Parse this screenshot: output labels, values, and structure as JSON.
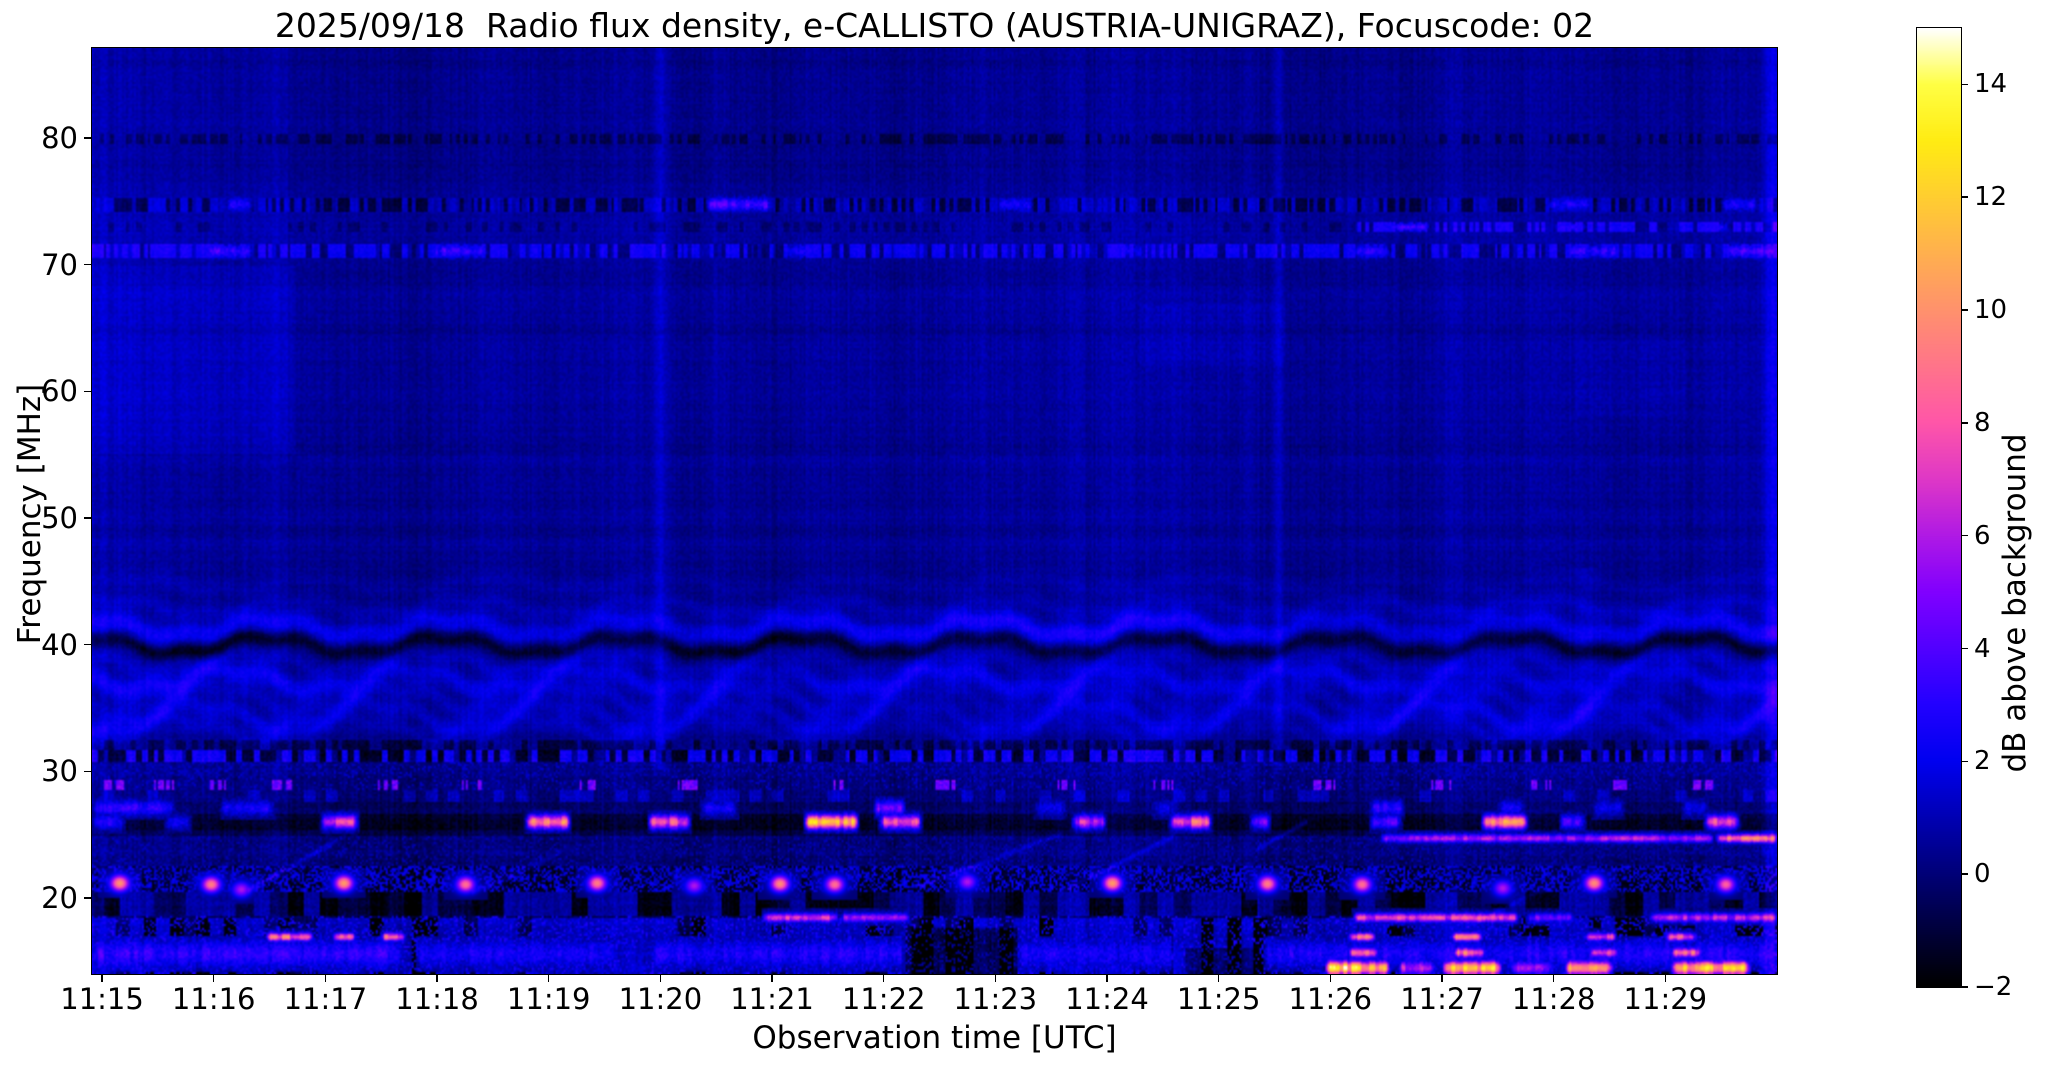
{
  "figure": {
    "background": "#ffffff",
    "text_color": "#000000"
  },
  "chart_data": {
    "type": "heatmap",
    "title": "2025/09/18  Radio flux density, e-CALLISTO (AUSTRIA-UNIGRAZ), Focuscode: 02",
    "date": "2025/09/18",
    "instrument": "e-CALLISTO",
    "station": "AUSTRIA-UNIGRAZ",
    "focuscode": "02",
    "xlabel": "Observation time [UTC]",
    "ylabel": "Frequency [MHz]",
    "colorbar_label": "dB above background",
    "x_ticks": [
      {
        "m": 0,
        "label": "11:15"
      },
      {
        "m": 1,
        "label": "11:16"
      },
      {
        "m": 2,
        "label": "11:17"
      },
      {
        "m": 3,
        "label": "11:18"
      },
      {
        "m": 4,
        "label": "11:19"
      },
      {
        "m": 5,
        "label": "11:20"
      },
      {
        "m": 6,
        "label": "11:21"
      },
      {
        "m": 7,
        "label": "11:22"
      },
      {
        "m": 8,
        "label": "11:23"
      },
      {
        "m": 9,
        "label": "11:24"
      },
      {
        "m": 10,
        "label": "11:25"
      },
      {
        "m": 11,
        "label": "11:26"
      },
      {
        "m": 12,
        "label": "11:27"
      },
      {
        "m": 13,
        "label": "11:28"
      },
      {
        "m": 14,
        "label": "11:29"
      }
    ],
    "y_ticks": [
      {
        "v": 80,
        "label": "80"
      },
      {
        "v": 70,
        "label": "70"
      },
      {
        "v": 60,
        "label": "60"
      },
      {
        "v": 50,
        "label": "50"
      },
      {
        "v": 40,
        "label": "40"
      },
      {
        "v": 30,
        "label": "30"
      },
      {
        "v": 20,
        "label": "20"
      }
    ],
    "colorbar_ticks": [
      {
        "v": -2,
        "label": "−2"
      },
      {
        "v": 0,
        "label": "0"
      },
      {
        "v": 2,
        "label": "2"
      },
      {
        "v": 4,
        "label": "4"
      },
      {
        "v": 6,
        "label": "6"
      },
      {
        "v": 8,
        "label": "8"
      },
      {
        "v": 10,
        "label": "10"
      },
      {
        "v": 12,
        "label": "12"
      },
      {
        "v": 14,
        "label": "14"
      }
    ],
    "value_range": [
      -2,
      15
    ],
    "time_range_min": [
      -0.09,
      15.0
    ],
    "freq_range_mhz": [
      14.0,
      87.1
    ],
    "colormap_stops": [
      [
        -2,
        "#000000"
      ],
      [
        -1,
        "#00003c"
      ],
      [
        0,
        "#000078"
      ],
      [
        1,
        "#0000b4"
      ],
      [
        2,
        "#0000f0"
      ],
      [
        3,
        "#2300ff"
      ],
      [
        4,
        "#5200ff"
      ],
      [
        5,
        "#8100ff"
      ],
      [
        6,
        "#b01ae5"
      ],
      [
        7,
        "#df38c7"
      ],
      [
        8,
        "#ff56a9"
      ],
      [
        9,
        "#ff748b"
      ],
      [
        10,
        "#ff926d"
      ],
      [
        11,
        "#ffb04f"
      ],
      [
        12,
        "#ffce31"
      ],
      [
        13,
        "#ffec13"
      ],
      [
        14,
        "#ffff44"
      ],
      [
        15,
        "#ffffff"
      ]
    ],
    "noise": {
      "column": 0.9,
      "slow": 0.5,
      "row": 0.55,
      "cell": 0.65,
      "low_freq_boost": 1.4
    },
    "base_levels": [
      [
        81,
        87.2,
        0.35
      ],
      [
        75.5,
        81,
        0.4
      ],
      [
        60,
        75.5,
        0.55
      ],
      [
        46.5,
        60,
        0.5
      ],
      [
        32.5,
        46.5,
        0.4
      ],
      [
        31.7,
        32.5,
        0.1
      ],
      [
        28.4,
        31.7,
        0.15
      ],
      [
        27.6,
        28.4,
        0.3
      ],
      [
        26.5,
        27.6,
        -0.2
      ],
      [
        25.3,
        26.5,
        -1.2
      ],
      [
        24.9,
        25.3,
        -0.6
      ],
      [
        22.4,
        24.9,
        0.0
      ],
      [
        20.4,
        22.4,
        -0.6
      ],
      [
        18.4,
        20.4,
        -0.8
      ],
      [
        14.0,
        18.4,
        -0.7
      ]
    ],
    "patches": [
      [
        -0.1,
        1.73,
        55,
        70,
        0.5
      ],
      [
        -0.1,
        1.73,
        70,
        87.2,
        0.15
      ],
      [
        -0.1,
        0.35,
        14,
        87.2,
        0.25
      ],
      [
        9.3,
        10.6,
        62,
        67,
        0.3
      ],
      [
        13.2,
        14.2,
        58,
        64,
        0.2
      ],
      [
        7.25,
        8.2,
        14,
        17.6,
        -1.8
      ],
      [
        9.7,
        10.35,
        14,
        16.0,
        -1.5
      ]
    ],
    "ripples": {
      "p1": 1.6,
      "p2": 0.53,
      "a2": 0.35,
      "bands": [
        [
          44.8,
          0.4,
          0.5,
          0.45,
          0.5
        ],
        [
          43.0,
          0.5,
          0.45,
          0.7,
          1.2
        ],
        [
          41.3,
          0.65,
          0.6,
          1.8,
          2.0
        ],
        [
          39.95,
          0.65,
          0.42,
          -1.7,
          2.1
        ],
        [
          38.6,
          0.7,
          0.5,
          0.8,
          2.6
        ],
        [
          37.2,
          0.8,
          0.6,
          1.5,
          3.4
        ],
        [
          35.7,
          0.85,
          0.5,
          0.8,
          4.0
        ],
        [
          34.4,
          0.9,
          0.55,
          1.2,
          4.6
        ],
        [
          33.3,
          0.85,
          0.45,
          0.7,
          5.2
        ]
      ]
    },
    "dash_bands": [
      {
        "f0": 79.6,
        "f1": 80.35,
        "colw": 0.033,
        "probs": [
          0.5
        ],
        "vals": [
          -1.0,
          0.1
        ]
      },
      {
        "f0": 74.25,
        "f1": 75.35,
        "colw": 0.033,
        "probs": [
          0.4,
          0.75
        ],
        "vals": [
          -1.4,
          0.8,
          0.15
        ]
      },
      {
        "f0": 72.65,
        "f1": 73.35,
        "t0": 11.2,
        "colw": 0.033,
        "probs": [
          0.5,
          0.8
        ],
        "vals": [
          2.0,
          -0.4,
          0.3
        ]
      },
      {
        "f0": 72.65,
        "f1": 73.35,
        "t1": 11.2,
        "colw": 0.05,
        "probs": [
          0.3
        ],
        "vals": [
          -0.7,
          0.1
        ]
      },
      {
        "f0": 70.55,
        "f1": 71.65,
        "colw": 0.033,
        "probs": [
          0.55,
          0.8
        ],
        "vals": [
          1.7,
          -0.6,
          0.4
        ]
      },
      {
        "f0": 31.7,
        "f1": 32.5,
        "colw": 0.05,
        "probs": [
          0.5
        ],
        "vals": [
          -0.8,
          0.4
        ]
      },
      {
        "f0": 30.75,
        "f1": 31.65,
        "colw": 0.05,
        "probs": [
          0.45,
          0.8
        ],
        "vals": [
          2.3,
          -1.2,
          0.4
        ]
      },
      {
        "f0": 27.6,
        "f1": 28.4,
        "colw": 0.1,
        "probs": [
          0.25
        ],
        "vals": [
          1.1,
          -0.1
        ]
      },
      {
        "f0": 18.45,
        "f1": 20.35,
        "colw": 0.15,
        "probs": [
          0.4,
          0.7
        ],
        "vals": [
          1.3,
          -1.1,
          -0.1
        ]
      },
      {
        "f0": 14.0,
        "f1": 18.4,
        "colw": 0.12,
        "probs": [
          0.55,
          0.8
        ],
        "vals": [
          1.8,
          -1.4,
          0.1
        ]
      }
    ],
    "speckle_bands": [
      {
        "f0": 20.4,
        "f1": 22.4,
        "dens": 0.5,
        "von": 1.4,
        "jit": 1.6,
        "voff": -0.7
      },
      {
        "f0": 22.4,
        "f1": 24.9,
        "dens": 0.15,
        "von": 0.8,
        "jit": 0.7,
        "voff": 0
      },
      {
        "f0": 29.4,
        "f1": 30.75,
        "dens": 0.18,
        "von": 1.1,
        "jit": 0.8,
        "voff": 0
      },
      {
        "f0": 28.4,
        "f1": 29.4,
        "dens": 0.1,
        "von": 1.2,
        "jit": 0.6,
        "voff": 0
      },
      {
        "f0": 14.0,
        "f1": 18.45,
        "dens": 0.25,
        "von": 1.9,
        "jit": 1.5,
        "voff": 0
      }
    ],
    "clusters": {
      "f0": 28.45,
      "f1": 29.3,
      "hw": 0.09,
      "dv": 4.6,
      "stripe_w": 0.012,
      "stripe_dens": 0.55,
      "times": [
        0.1,
        0.55,
        1.05,
        1.6,
        2.55,
        3.3,
        4.35,
        5.25,
        6.55,
        7.55,
        8.65,
        9.5,
        10.95,
        12.0,
        12.9,
        13.6,
        14.35
      ]
    },
    "segment_bands": [
      {
        "f0": 25.45,
        "f1": 26.45,
        "segs": [
          [
            -0.1,
            0.2,
            2.5
          ],
          [
            0.55,
            0.8,
            2.0
          ],
          [
            1.95,
            2.3,
            6.5
          ],
          [
            3.78,
            4.2,
            9.0
          ],
          [
            4.88,
            5.28,
            7.5
          ],
          [
            6.28,
            6.78,
            10.5
          ],
          [
            6.95,
            7.35,
            6.8
          ],
          [
            8.68,
            9.0,
            6.2
          ],
          [
            9.55,
            9.95,
            7.8
          ],
          [
            10.28,
            10.48,
            4.5
          ],
          [
            11.35,
            11.65,
            3.5
          ],
          [
            12.35,
            12.78,
            8.8
          ],
          [
            13.05,
            13.3,
            4.0
          ],
          [
            14.35,
            14.68,
            7.2
          ]
        ]
      },
      {
        "f0": 26.5,
        "f1": 27.6,
        "segs": [
          [
            -0.1,
            0.65,
            2.8
          ],
          [
            1.05,
            1.55,
            2.4
          ],
          [
            5.35,
            5.7,
            2.2
          ],
          [
            6.9,
            7.2,
            4.8
          ],
          [
            8.35,
            8.65,
            2.0
          ],
          [
            9.4,
            9.65,
            1.8
          ],
          [
            11.35,
            11.68,
            3.0
          ],
          [
            12.5,
            12.75,
            2.2
          ],
          [
            13.35,
            13.65,
            2.0
          ],
          [
            14.15,
            14.4,
            1.8
          ]
        ]
      },
      {
        "f0": 24.35,
        "f1": 24.95,
        "segs": [
          [
            11.45,
            14.45,
            5.5
          ],
          [
            14.45,
            15.02,
            8.5
          ]
        ]
      },
      {
        "f0": 18.05,
        "f1": 18.7,
        "segs": [
          [
            5.9,
            6.6,
            6.5
          ],
          [
            6.6,
            7.25,
            5.2
          ],
          [
            11.2,
            12.7,
            7.0
          ],
          [
            12.75,
            13.2,
            4.2
          ],
          [
            13.85,
            15.02,
            5.8
          ]
        ]
      },
      {
        "f0": 16.55,
        "f1": 17.15,
        "segs": [
          [
            1.45,
            1.9,
            8.8
          ],
          [
            2.05,
            2.28,
            7.5
          ],
          [
            2.48,
            2.72,
            8.0
          ],
          [
            11.15,
            11.42,
            8.5
          ],
          [
            12.08,
            12.38,
            8.0
          ],
          [
            13.28,
            13.58,
            7.0
          ],
          [
            14.0,
            14.3,
            7.5
          ]
        ]
      },
      {
        "f0": 15.25,
        "f1": 15.95,
        "segs": [
          [
            11.15,
            11.45,
            8.0
          ],
          [
            12.1,
            12.4,
            8.5
          ],
          [
            13.32,
            13.6,
            7.5
          ],
          [
            14.05,
            14.35,
            8.0
          ]
        ]
      },
      {
        "f0": 13.9,
        "f1": 14.9,
        "segs": [
          [
            10.95,
            11.55,
            11.5
          ],
          [
            11.6,
            11.95,
            6.0
          ],
          [
            12.0,
            12.55,
            11.0
          ],
          [
            12.6,
            13.0,
            5.0
          ],
          [
            13.1,
            13.55,
            10.0
          ],
          [
            14.05,
            14.78,
            11.5
          ]
        ]
      },
      {
        "f0": 14.4,
        "f1": 16.6,
        "segs": [
          [
            -0.1,
            2.7,
            2.9
          ],
          [
            2.8,
            4.6,
            2.3
          ],
          [
            4.9,
            7.2,
            2.5
          ],
          [
            8.2,
            9.6,
            2.3
          ],
          [
            10.4,
            15.02,
            2.6
          ]
        ]
      },
      {
        "f0": 74.3,
        "f1": 75.3,
        "segs": [
          [
            1.1,
            1.35,
            2.8
          ],
          [
            5.4,
            6.0,
            3.6
          ],
          [
            8.0,
            8.35,
            2.2
          ],
          [
            12.95,
            13.35,
            2.6
          ],
          [
            14.5,
            14.85,
            2.4
          ]
        ]
      },
      {
        "f0": 70.6,
        "f1": 71.6,
        "segs": [
          [
            0.9,
            1.35,
            3.0
          ],
          [
            2.95,
            3.45,
            3.2
          ],
          [
            6.1,
            6.45,
            2.4
          ],
          [
            9.0,
            9.35,
            2.2
          ],
          [
            11.2,
            11.55,
            2.6
          ],
          [
            13.1,
            13.6,
            3.0
          ],
          [
            14.55,
            15.02,
            3.2
          ]
        ]
      },
      {
        "f0": 72.7,
        "f1": 73.3,
        "segs": [
          [
            11.5,
            11.9,
            3.4
          ],
          [
            13.0,
            13.3,
            2.8
          ],
          [
            14.3,
            14.6,
            2.4
          ]
        ]
      }
    ],
    "dots": {
      "rt": 0.06,
      "rf": 0.45,
      "list": [
        [
          0.15,
          21.1,
          10
        ],
        [
          0.97,
          21.0,
          9.5
        ],
        [
          2.16,
          21.1,
          10.5
        ],
        [
          3.25,
          21.0,
          9.0
        ],
        [
          4.43,
          21.1,
          9.5
        ],
        [
          6.07,
          21.05,
          10
        ],
        [
          6.56,
          21.0,
          9.0
        ],
        [
          9.05,
          21.1,
          10.5
        ],
        [
          10.44,
          21.05,
          9.5
        ],
        [
          11.29,
          21.0,
          9.0
        ],
        [
          13.37,
          21.1,
          10.0
        ],
        [
          14.55,
          21.0,
          8.5
        ],
        [
          1.24,
          20.6,
          6.0
        ],
        [
          5.3,
          20.9,
          6.0
        ],
        [
          7.75,
          21.2,
          6.0
        ],
        [
          12.55,
          20.7,
          6.0
        ]
      ]
    },
    "diagonals": {
      "w": 0.3,
      "list": [
        [
          1.3,
          20.5,
          2.1,
          24.5,
          1.4
        ],
        [
          3.3,
          20.3,
          4.1,
          23.5,
          1.0
        ],
        [
          7.3,
          20.8,
          8.6,
          25.0,
          1.2
        ],
        [
          8.6,
          20.5,
          9.6,
          24.8,
          1.3
        ],
        [
          10.35,
          23.8,
          10.8,
          26.0,
          1.6
        ],
        [
          12.2,
          17.5,
          13.0,
          21.0,
          0.9
        ]
      ]
    },
    "vlines": [
      [
        5.0,
        0.04,
        0.9,
        30,
        87.2
      ],
      [
        10.55,
        0.035,
        0.8,
        30,
        87.2
      ],
      [
        1.73,
        0.015,
        -0.35,
        14,
        87.2
      ],
      [
        14.96,
        0.05,
        1.4,
        14,
        87.2
      ],
      [
        13.3,
        0.05,
        0.45,
        32,
        46
      ]
    ]
  }
}
